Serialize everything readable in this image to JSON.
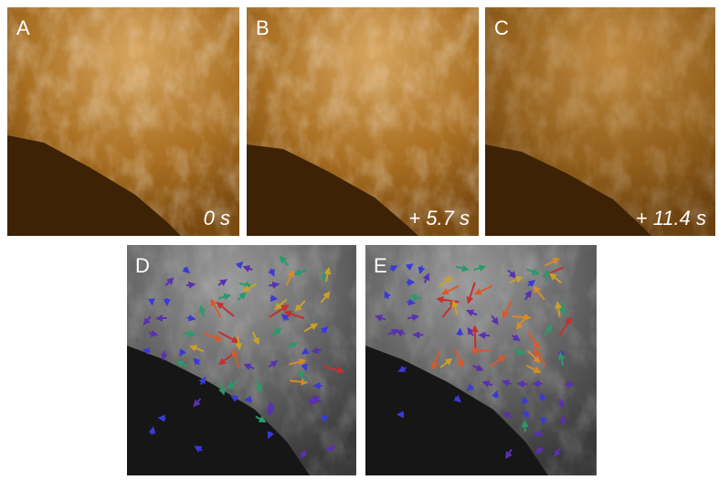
{
  "panels": [
    {
      "label": "A",
      "time": "0 s"
    },
    {
      "label": "B",
      "time": "+ 5.7 s"
    },
    {
      "label": "C",
      "time": "+ 11.4 s"
    },
    {
      "label": "D"
    },
    {
      "label": "E"
    }
  ]
}
